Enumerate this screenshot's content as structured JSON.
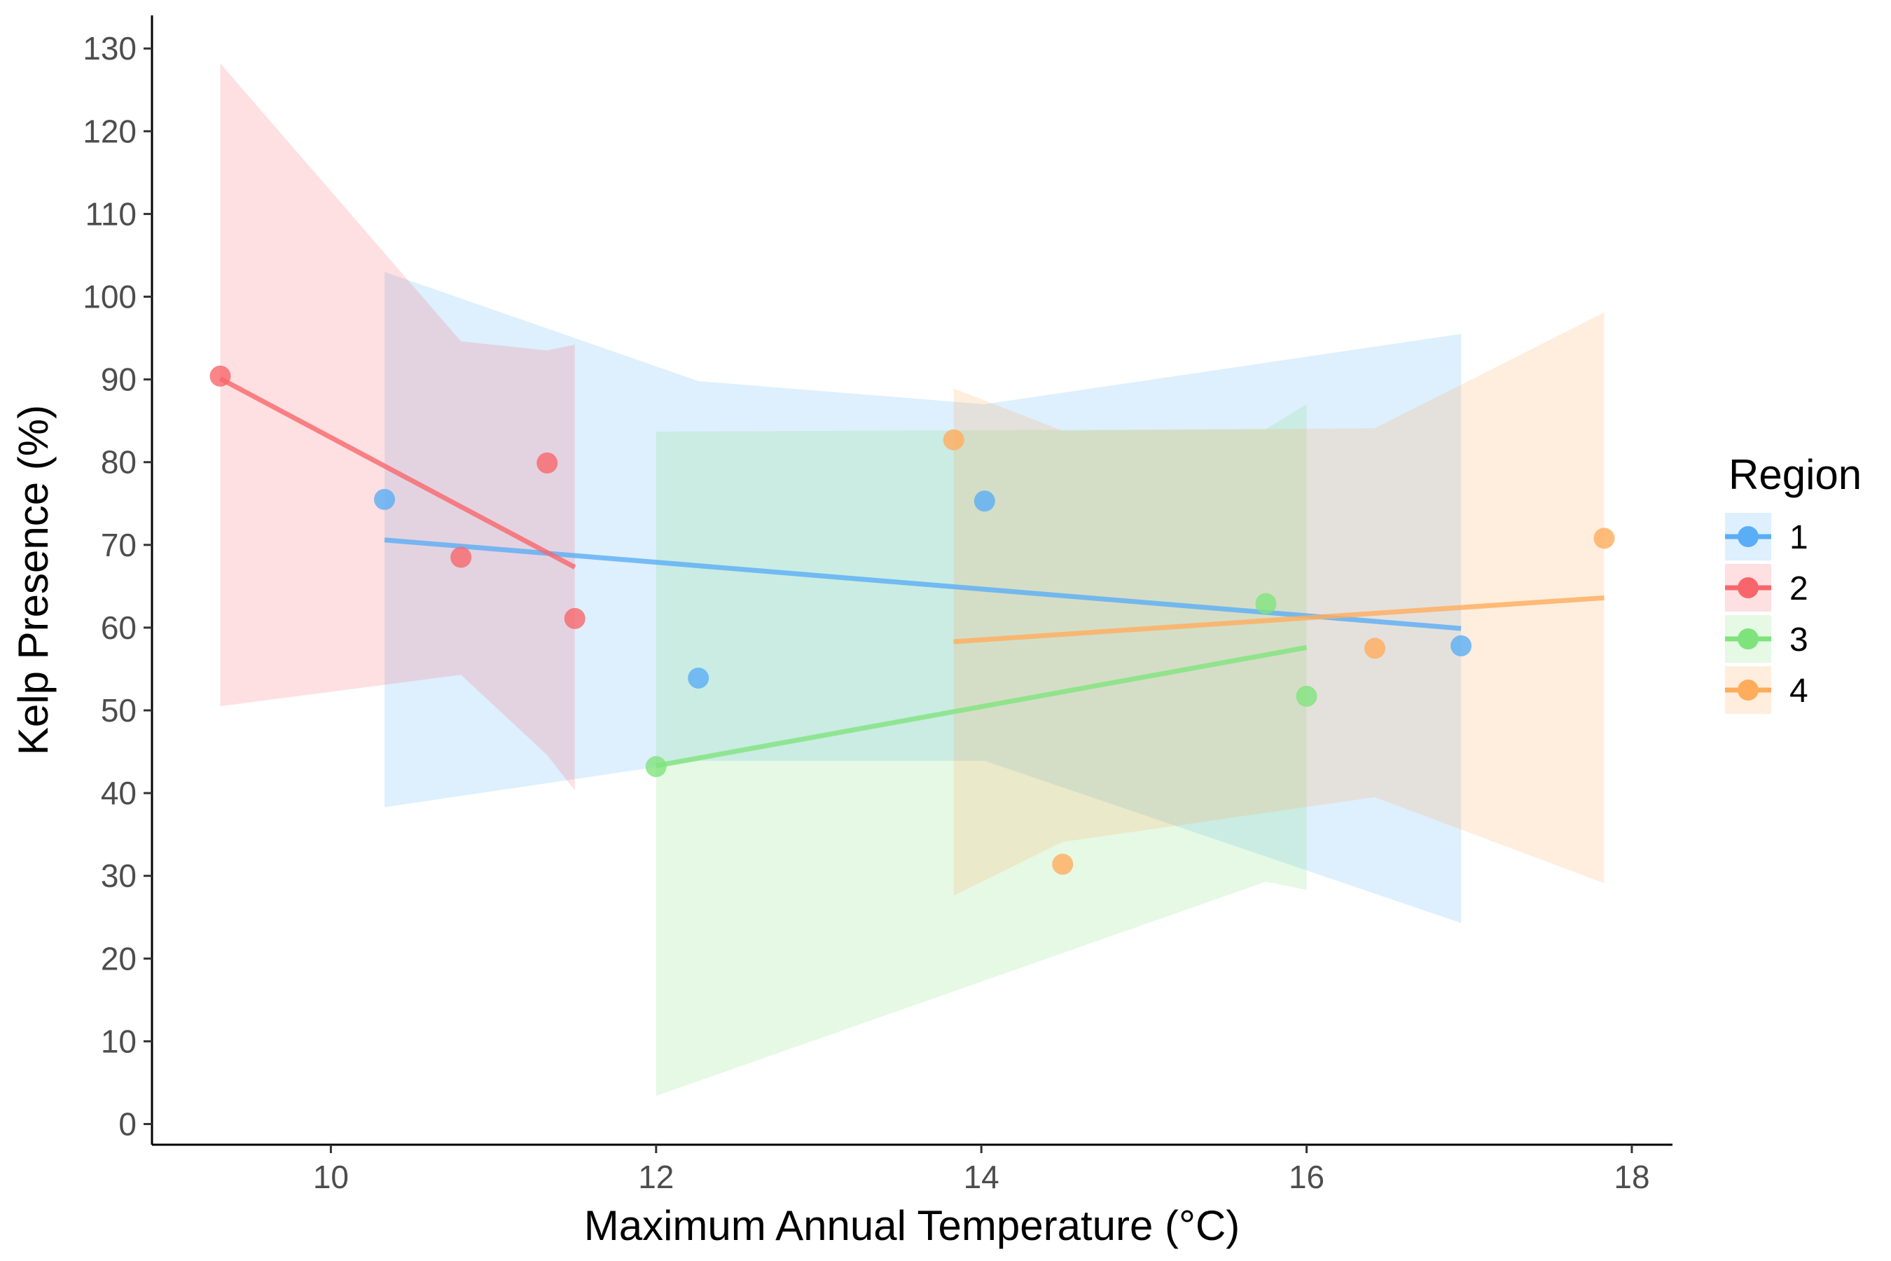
{
  "chart_data": {
    "type": "scatter",
    "title": "",
    "xlabel": "Maximum Annual Temperature (°C)",
    "ylabel": "Kelp Presence (%)",
    "xlim": [
      8.9,
      18.25
    ],
    "ylim": [
      -2.5,
      134
    ],
    "x_ticks": [
      10,
      12,
      14,
      16,
      18
    ],
    "y_ticks": [
      0,
      10,
      20,
      30,
      40,
      50,
      60,
      70,
      80,
      90,
      100,
      110,
      120,
      130
    ],
    "grid": false,
    "legend": {
      "title": "Region",
      "position": "right"
    },
    "series": [
      {
        "name": "1",
        "color": "#5aaef5",
        "points": [
          {
            "x": 10.33,
            "y": 75.5
          },
          {
            "x": 12.26,
            "y": 53.9
          },
          {
            "x": 14.02,
            "y": 75.3
          },
          {
            "x": 16.95,
            "y": 57.8
          }
        ],
        "fit": {
          "x": [
            10.33,
            16.95
          ],
          "y": [
            70.6,
            59.9
          ]
        },
        "band": [
          {
            "x": 10.33,
            "lo": 38.3,
            "hi": 103.0
          },
          {
            "x": 12.26,
            "lo": 43.9,
            "hi": 89.8
          },
          {
            "x": 14.02,
            "lo": 43.9,
            "hi": 87.0
          },
          {
            "x": 16.95,
            "lo": 24.3,
            "hi": 95.5
          }
        ]
      },
      {
        "name": "2",
        "color": "#f8666c",
        "points": [
          {
            "x": 9.32,
            "y": 90.4
          },
          {
            "x": 10.8,
            "y": 68.5
          },
          {
            "x": 11.33,
            "y": 79.9
          },
          {
            "x": 11.5,
            "y": 61.1
          }
        ],
        "fit": {
          "x": [
            9.32,
            11.5
          ],
          "y": [
            90.1,
            67.3
          ]
        },
        "band": [
          {
            "x": 9.32,
            "lo": 50.5,
            "hi": 128.2
          },
          {
            "x": 10.8,
            "lo": 54.3,
            "hi": 94.6
          },
          {
            "x": 11.33,
            "lo": 44.6,
            "hi": 93.5
          },
          {
            "x": 11.5,
            "lo": 40.3,
            "hi": 94.2
          }
        ]
      },
      {
        "name": "3",
        "color": "#7fe37d",
        "points": [
          {
            "x": 12.0,
            "y": 43.2
          },
          {
            "x": 15.75,
            "y": 62.9
          },
          {
            "x": 16.0,
            "y": 51.7
          }
        ],
        "fit": {
          "x": [
            12.0,
            16.0
          ],
          "y": [
            43.3,
            57.6
          ]
        },
        "band": [
          {
            "x": 12.0,
            "lo": 3.4,
            "hi": 83.7
          },
          {
            "x": 15.75,
            "lo": 29.3,
            "hi": 84.0
          },
          {
            "x": 16.0,
            "lo": 28.3,
            "hi": 87.0
          }
        ]
      },
      {
        "name": "4",
        "color": "#ffac5c",
        "points": [
          {
            "x": 13.83,
            "y": 82.7
          },
          {
            "x": 14.5,
            "y": 31.4
          },
          {
            "x": 16.42,
            "y": 57.5
          },
          {
            "x": 17.83,
            "y": 70.8
          }
        ],
        "fit": {
          "x": [
            13.83,
            17.83
          ],
          "y": [
            58.3,
            63.6
          ]
        },
        "band": [
          {
            "x": 13.83,
            "lo": 27.6,
            "hi": 88.9
          },
          {
            "x": 14.5,
            "lo": 34.1,
            "hi": 83.8
          },
          {
            "x": 16.42,
            "lo": 39.5,
            "hi": 84.1
          },
          {
            "x": 17.83,
            "lo": 29.1,
            "hi": 98.1
          }
        ]
      }
    ]
  }
}
